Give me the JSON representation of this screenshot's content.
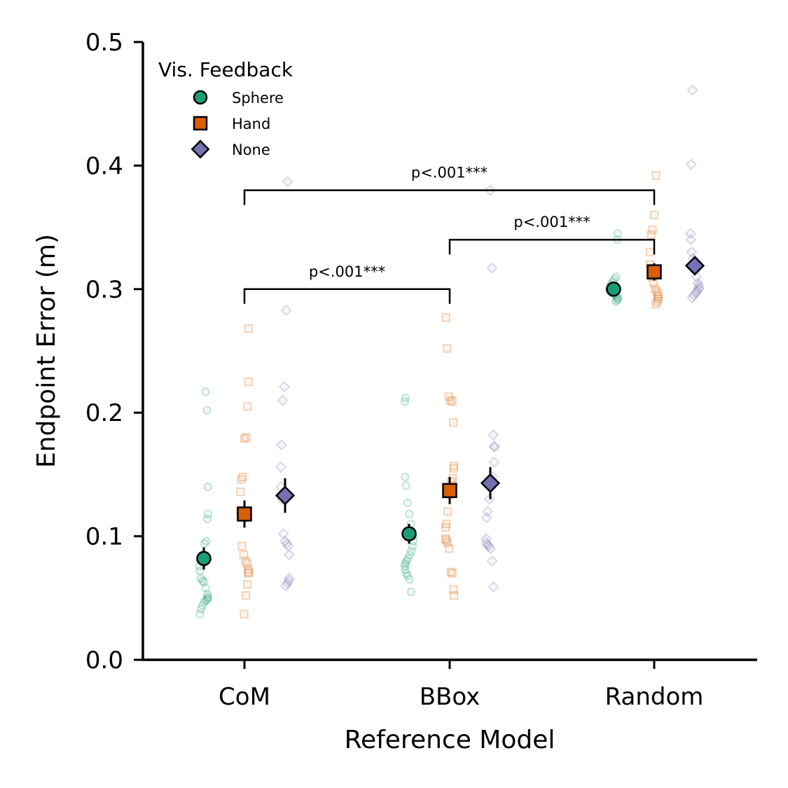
{
  "chart_data": {
    "type": "scatter",
    "xlabel": "Reference Model",
    "ylabel": "Endpoint Error (m)",
    "categories": [
      "CoM",
      "BBox",
      "Random"
    ],
    "ylim": [
      0.0,
      0.5
    ],
    "yticks": [
      "0.0",
      "0.1",
      "0.2",
      "0.3",
      "0.4",
      "0.5"
    ],
    "grid": false,
    "legend": {
      "title": "Vis. Feedback",
      "position": "top-left",
      "entries": [
        "Sphere",
        "Hand",
        "None"
      ]
    },
    "series": [
      {
        "name": "Sphere",
        "marker": "circle",
        "color": "#1b9e77",
        "means": [
          0.082,
          0.102,
          0.3
        ],
        "errors": [
          0.009,
          0.008,
          0.004
        ],
        "points": [
          [
            0.217,
            0.202,
            0.14,
            0.118,
            0.114,
            0.096,
            0.094,
            0.085,
            0.083,
            0.081,
            0.076,
            0.072,
            0.066,
            0.064,
            0.063,
            0.058,
            0.053,
            0.051,
            0.05,
            0.049,
            0.048,
            0.047,
            0.044,
            0.041,
            0.037
          ],
          [
            0.212,
            0.209,
            0.148,
            0.141,
            0.127,
            0.118,
            0.11,
            0.104,
            0.1,
            0.096,
            0.092,
            0.088,
            0.085,
            0.082,
            0.08,
            0.078,
            0.076,
            0.073,
            0.07,
            0.068,
            0.065,
            0.055
          ],
          [
            0.345,
            0.34,
            0.31,
            0.308,
            0.306,
            0.304,
            0.302,
            0.3,
            0.299,
            0.298,
            0.297,
            0.296,
            0.295,
            0.294,
            0.293,
            0.292,
            0.291,
            0.29
          ]
        ]
      },
      {
        "name": "Hand",
        "marker": "square",
        "color": "#d95f02",
        "means": [
          0.118,
          0.137,
          0.314
        ],
        "errors": [
          0.011,
          0.011,
          0.007
        ],
        "points": [
          [
            0.268,
            0.225,
            0.205,
            0.18,
            0.179,
            0.148,
            0.146,
            0.136,
            0.12,
            0.116,
            0.092,
            0.085,
            0.08,
            0.078,
            0.073,
            0.071,
            0.07,
            0.061,
            0.052,
            0.037
          ],
          [
            0.277,
            0.252,
            0.213,
            0.21,
            0.209,
            0.192,
            0.157,
            0.155,
            0.147,
            0.144,
            0.134,
            0.12,
            0.11,
            0.107,
            0.098,
            0.097,
            0.095,
            0.09,
            0.071,
            0.07,
            0.057,
            0.052
          ],
          [
            0.392,
            0.36,
            0.348,
            0.344,
            0.33,
            0.32,
            0.312,
            0.31,
            0.305,
            0.3,
            0.298,
            0.296,
            0.294,
            0.292,
            0.29,
            0.288
          ]
        ]
      },
      {
        "name": "None",
        "marker": "diamond",
        "color": "#7570b3",
        "means": [
          0.133,
          0.143,
          0.319
        ],
        "errors": [
          0.014,
          0.013,
          0.007
        ],
        "points": [
          [
            0.387,
            0.283,
            0.221,
            0.21,
            0.174,
            0.156,
            0.14,
            0.13,
            0.102,
            0.096,
            0.094,
            0.092,
            0.085,
            0.066,
            0.064,
            0.062,
            0.06
          ],
          [
            0.38,
            0.317,
            0.182,
            0.173,
            0.172,
            0.16,
            0.148,
            0.14,
            0.13,
            0.12,
            0.115,
            0.098,
            0.095,
            0.093,
            0.092,
            0.09,
            0.08,
            0.059
          ],
          [
            0.461,
            0.401,
            0.345,
            0.34,
            0.33,
            0.325,
            0.315,
            0.31,
            0.305,
            0.303,
            0.301,
            0.3,
            0.298,
            0.297,
            0.295,
            0.293
          ]
        ]
      }
    ],
    "annotations": [
      {
        "label": "p<.001***",
        "from": "CoM",
        "to": "BBox",
        "y": 0.3
      },
      {
        "label": "p<.001***",
        "from": "CoM",
        "to": "Random",
        "y": 0.38
      },
      {
        "label": "p<.001***",
        "from": "BBox",
        "to": "Random",
        "y": 0.34
      }
    ]
  }
}
